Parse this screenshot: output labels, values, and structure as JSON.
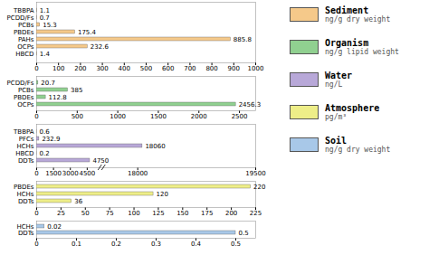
{
  "chart_data": [
    {
      "type": "bar",
      "orientation": "horizontal",
      "categories": [
        "TBBPA",
        "PCDD/Fs",
        "PCBs",
        "PBDEs",
        "PAHs",
        "OCPs",
        "HBCD"
      ],
      "series": [
        {
          "name": "Sediment",
          "color": "#F5C98A",
          "values": [
            1.1,
            0.7,
            15.3,
            175.4,
            885.8,
            232.6,
            1.4
          ]
        }
      ],
      "xlim": [
        0,
        1000
      ],
      "xticks": [
        0,
        100,
        200,
        300,
        400,
        500,
        600,
        700,
        800,
        900,
        1000
      ],
      "data_labels": true,
      "annotations": [
        "ng/g dry weight"
      ]
    },
    {
      "type": "bar",
      "orientation": "horizontal",
      "categories": [
        "PCDD/Fs",
        "PCBs",
        "PBDEs",
        "OCPs"
      ],
      "series": [
        {
          "name": "Organism",
          "color": "#90D090",
          "values": [
            20.7,
            385,
            112.8,
            2456.3
          ]
        }
      ],
      "xlim": [
        0,
        2700
      ],
      "xticks": [
        0,
        500,
        1000,
        1500,
        2000,
        2500
      ],
      "data_labels": true,
      "annotations": [
        "ng/g lipid weight"
      ]
    },
    {
      "type": "bar",
      "orientation": "horizontal",
      "categories": [
        "TBBPA",
        "PFCs",
        "HCHs",
        "HBCD",
        "DDTs"
      ],
      "series": [
        {
          "name": "Water",
          "color": "#B8A8D8",
          "values": [
            0.6,
            232.9,
            18060,
            0.2,
            4750
          ]
        }
      ],
      "xlim": [
        0,
        19500
      ],
      "xticks": [
        0,
        1500,
        3000,
        4500,
        18000,
        19500
      ],
      "axis_break": [
        5500,
        17500
      ],
      "data_labels": true,
      "annotations": [
        "ng/L"
      ]
    },
    {
      "type": "bar",
      "orientation": "horizontal",
      "categories": [
        "PBDEs",
        "HCHs",
        "DDTs"
      ],
      "series": [
        {
          "name": "Atmosphere",
          "color": "#EEEE88",
          "values": [
            220,
            120,
            36
          ]
        }
      ],
      "xlim": [
        0,
        225
      ],
      "xticks": [
        0,
        25,
        50,
        75,
        100,
        125,
        150,
        175,
        200,
        225
      ],
      "data_labels": true,
      "annotations": [
        "pg/m³"
      ]
    },
    {
      "type": "bar",
      "orientation": "horizontal",
      "categories": [
        "HCHs",
        "DDTs"
      ],
      "series": [
        {
          "name": "Soil",
          "color": "#A8C8E8",
          "values": [
            0.02,
            0.5
          ]
        }
      ],
      "xlim": [
        0,
        0.55
      ],
      "xticks": [
        0,
        0.1,
        0.2,
        0.3,
        0.4,
        0.5
      ],
      "data_labels": true,
      "annotations": [
        "ng/g dry weight"
      ]
    }
  ]
}
